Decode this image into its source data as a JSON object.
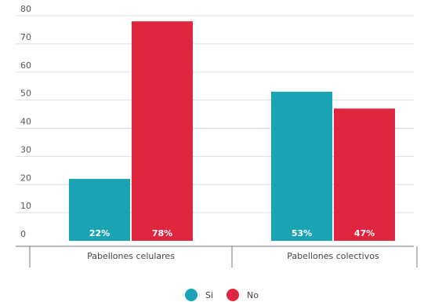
{
  "chart_data": {
    "type": "bar",
    "categories": [
      "Pabellones celulares",
      "Pabellones colectivos"
    ],
    "series": [
      {
        "name": "Si",
        "values": [
          22,
          53
        ],
        "labels": [
          "22%",
          "53%"
        ],
        "color": "#1aa3b3"
      },
      {
        "name": "No",
        "values": [
          78,
          47
        ],
        "labels": [
          "78%",
          "47%"
        ],
        "color": "#e0263e"
      }
    ],
    "ylim": [
      0,
      80
    ],
    "yticks": [
      "0",
      "10",
      "20",
      "30",
      "40",
      "50",
      "60",
      "70",
      "80"
    ],
    "grid": true,
    "legend": "bottom-center"
  }
}
